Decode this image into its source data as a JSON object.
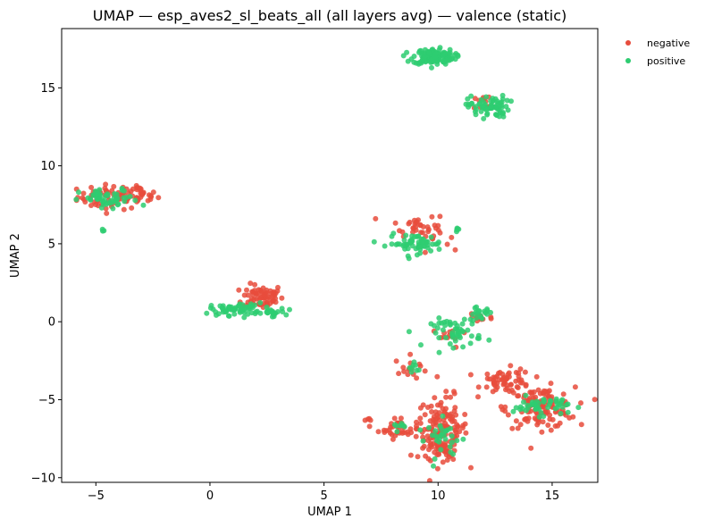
{
  "chart_data": {
    "type": "scatter",
    "title": "UMAP — esp_aves2_sl_beats_all (all layers avg) — valence (static)",
    "xlabel": "UMAP 1",
    "ylabel": "UMAP 2",
    "xlim": [
      -6.5,
      17.0
    ],
    "ylim": [
      -10.3,
      18.8
    ],
    "xticks": [
      -5,
      0,
      5,
      10,
      15
    ],
    "yticks": [
      -10,
      -5,
      0,
      5,
      10,
      15
    ],
    "xtick_labels": [
      "−5",
      "0",
      "5",
      "10",
      "15"
    ],
    "ytick_labels": [
      "−10",
      "−5",
      "0",
      "5",
      "10",
      "15"
    ],
    "grid": false,
    "legend_position": "top-right (outside plot)",
    "series": [
      {
        "name": "negative",
        "color": "#e74c3c",
        "clusters": [
          {
            "cx": -4.3,
            "cy": 8.0,
            "sx": 0.75,
            "sy": 0.4,
            "n": 70
          },
          {
            "cx": -3.0,
            "cy": 8.1,
            "sx": 0.35,
            "sy": 0.25,
            "n": 20
          },
          {
            "cx": 2.3,
            "cy": 1.6,
            "sx": 0.45,
            "sy": 0.4,
            "n": 70
          },
          {
            "cx": 9.0,
            "cy": 6.2,
            "sx": 0.5,
            "sy": 0.35,
            "n": 25
          },
          {
            "cx": 9.8,
            "cy": 5.6,
            "sx": 0.35,
            "sy": 0.5,
            "n": 15
          },
          {
            "cx": 8.8,
            "cy": -3.0,
            "sx": 0.35,
            "sy": 0.4,
            "n": 15
          },
          {
            "cx": 8.3,
            "cy": -6.8,
            "sx": 0.45,
            "sy": 0.35,
            "n": 40
          },
          {
            "cx": 7.0,
            "cy": -6.3,
            "sx": 0.1,
            "sy": 0.05,
            "n": 4
          },
          {
            "cx": 10.2,
            "cy": -6.8,
            "sx": 0.55,
            "sy": 1.0,
            "n": 120
          },
          {
            "cx": 10.0,
            "cy": -8.2,
            "sx": 0.45,
            "sy": 0.4,
            "n": 40
          },
          {
            "cx": 13.0,
            "cy": -3.8,
            "sx": 0.55,
            "sy": 0.4,
            "n": 60
          },
          {
            "cx": 14.5,
            "cy": -5.5,
            "sx": 0.75,
            "sy": 0.65,
            "n": 120
          },
          {
            "cx": 10.5,
            "cy": -1.0,
            "sx": 0.4,
            "sy": 0.35,
            "n": 12
          },
          {
            "cx": 11.8,
            "cy": 0.3,
            "sx": 0.3,
            "sy": 0.25,
            "n": 15
          },
          {
            "cx": 12.1,
            "cy": 14.0,
            "sx": 0.3,
            "sy": 0.3,
            "n": 12
          }
        ]
      },
      {
        "name": "positive",
        "color": "#2ecc71",
        "clusters": [
          {
            "cx": 9.8,
            "cy": 17.0,
            "sx": 0.45,
            "sy": 0.25,
            "n": 140
          },
          {
            "cx": 12.2,
            "cy": 13.8,
            "sx": 0.45,
            "sy": 0.35,
            "n": 70
          },
          {
            "cx": -4.4,
            "cy": 7.8,
            "sx": 0.65,
            "sy": 0.35,
            "n": 50
          },
          {
            "cx": -4.7,
            "cy": 5.9,
            "sx": 0.05,
            "sy": 0.05,
            "n": 3
          },
          {
            "cx": 1.2,
            "cy": 0.8,
            "sx": 0.6,
            "sy": 0.2,
            "n": 60
          },
          {
            "cx": 2.7,
            "cy": 0.6,
            "sx": 0.3,
            "sy": 0.15,
            "n": 20
          },
          {
            "cx": 9.0,
            "cy": 5.0,
            "sx": 0.6,
            "sy": 0.3,
            "n": 60
          },
          {
            "cx": 10.9,
            "cy": 5.9,
            "sx": 0.1,
            "sy": 0.08,
            "n": 5
          },
          {
            "cx": 10.8,
            "cy": -0.7,
            "sx": 0.55,
            "sy": 0.45,
            "n": 50
          },
          {
            "cx": 11.8,
            "cy": 0.5,
            "sx": 0.3,
            "sy": 0.2,
            "n": 20
          },
          {
            "cx": 9.0,
            "cy": -2.9,
            "sx": 0.2,
            "sy": 0.2,
            "n": 8
          },
          {
            "cx": 10.3,
            "cy": -7.5,
            "sx": 0.4,
            "sy": 0.6,
            "n": 30
          },
          {
            "cx": 14.5,
            "cy": -5.4,
            "sx": 0.6,
            "sy": 0.3,
            "n": 50
          },
          {
            "cx": 8.4,
            "cy": -6.8,
            "sx": 0.3,
            "sy": 0.2,
            "n": 8
          }
        ]
      }
    ]
  }
}
